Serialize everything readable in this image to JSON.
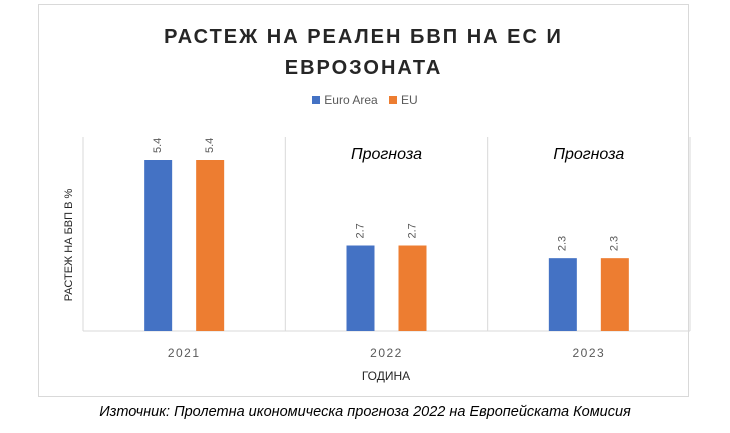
{
  "chart_data": {
    "type": "bar",
    "title_lines": [
      "РАСТЕЖ НА РЕАЛЕН БВП НА ЕС И",
      "ЕВРОЗОНАТА"
    ],
    "categories": [
      "2021",
      "2022",
      "2023"
    ],
    "series": [
      {
        "name": "Euro Area",
        "color": "#4472c4",
        "values": [
          5.4,
          2.7,
          2.3
        ]
      },
      {
        "name": "EU",
        "color": "#ed7d31",
        "values": [
          5.4,
          2.7,
          2.3
        ]
      }
    ],
    "annotations": [
      "",
      "Прогноза",
      "Прогноза"
    ],
    "xlabel": "ГОДИНА",
    "ylabel": "РАСТЕЖ НА БВП В %",
    "ylim": [
      0,
      5.4
    ],
    "grid": false,
    "category_separators": true,
    "legend_position": "top"
  },
  "source_note": "Източник: Пролетна икономическа прогноза 2022 на Европейската Комисия"
}
